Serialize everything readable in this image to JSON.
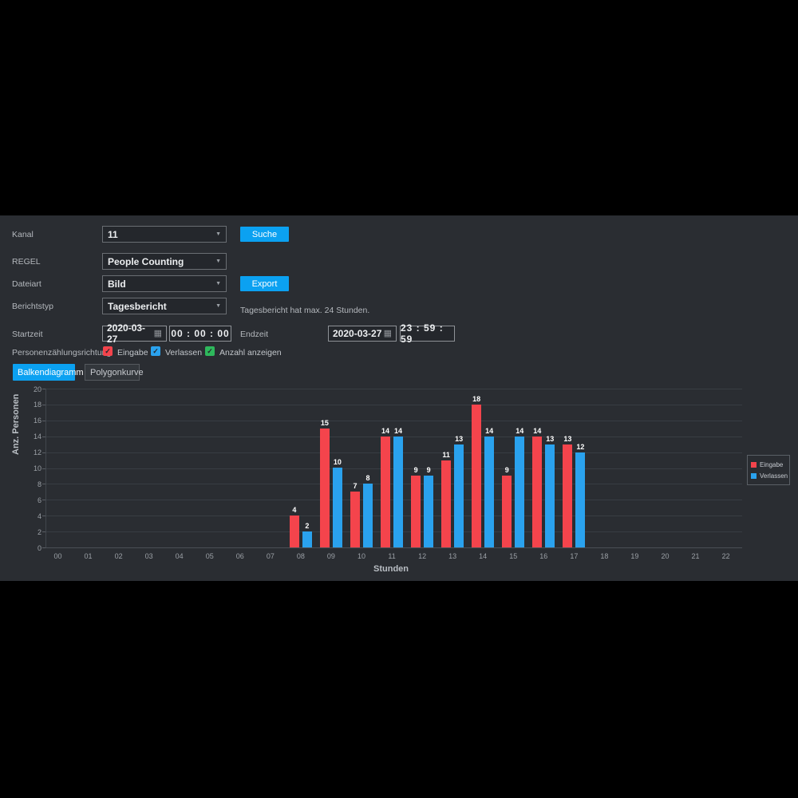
{
  "form": {
    "kanal": {
      "label": "Kanal",
      "value": "11"
    },
    "regel": {
      "label": "REGEL",
      "value": "People Counting"
    },
    "dateiart": {
      "label": "Dateiart",
      "value": "Bild"
    },
    "berichtstyp": {
      "label": "Berichtstyp",
      "value": "Tagesbericht"
    },
    "hint": "Tagesbericht hat max. 24 Stunden.",
    "startzeit": {
      "label": "Startzeit",
      "date": "2020-03-27",
      "time": "00 : 00 : 00"
    },
    "endzeit": {
      "label": "Endzeit",
      "date": "2020-03-27",
      "time": "23 : 59 : 59"
    },
    "richtung_label": "Personenzählungsrichtung",
    "checkboxes": [
      {
        "label": "Eingabe",
        "color": "#f4444c",
        "checked": true
      },
      {
        "label": "Verlassen",
        "color": "#2aa2ee",
        "checked": true
      },
      {
        "label": "Anzahl anzeigen",
        "color": "#2eb85c",
        "checked": true
      }
    ],
    "buttons": {
      "suche": "Suche",
      "export": "Export",
      "balkendiagramm": "Balkendiagramm",
      "polygonkurve": "Polygonkurve"
    }
  },
  "colors": {
    "accent_blue": "#0ba1f1",
    "bar_red": "#f4444c",
    "bar_blue": "#2aa2ee",
    "check_green": "#2eb85c"
  },
  "chart_data": {
    "type": "bar",
    "title": "",
    "xlabel": "Stunden",
    "ylabel": "Anz. Personen",
    "ylim": [
      0,
      20
    ],
    "ytick_step": 2,
    "grid": true,
    "legend_position": "right",
    "show_values": true,
    "categories": [
      "00",
      "01",
      "02",
      "03",
      "04",
      "05",
      "06",
      "07",
      "08",
      "09",
      "10",
      "11",
      "12",
      "13",
      "14",
      "15",
      "16",
      "17",
      "18",
      "19",
      "20",
      "21",
      "22"
    ],
    "series": [
      {
        "name": "Eingabe",
        "color": "#f4444c",
        "values": [
          0,
          0,
          0,
          0,
          0,
          0,
          0,
          0,
          4,
          15,
          7,
          14,
          9,
          11,
          18,
          9,
          14,
          13,
          0,
          0,
          0,
          0,
          0
        ]
      },
      {
        "name": "Verlassen",
        "color": "#2aa2ee",
        "values": [
          0,
          0,
          0,
          0,
          0,
          0,
          0,
          0,
          2,
          10,
          8,
          14,
          9,
          13,
          14,
          14,
          13,
          12,
          0,
          0,
          0,
          0,
          0
        ]
      }
    ]
  }
}
